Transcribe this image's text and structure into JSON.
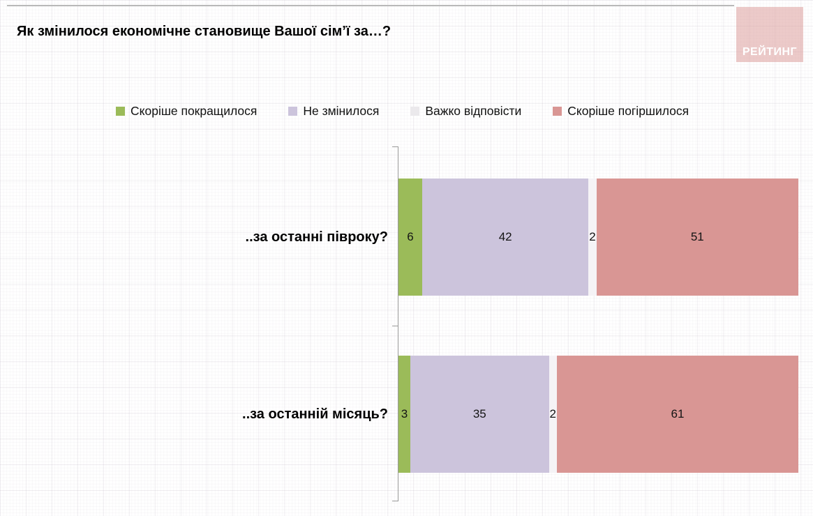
{
  "logo": {
    "text": "РЕЙТИНГ",
    "bg_color": "#e9c5c3",
    "text_color": "#ffffff"
  },
  "chart_data": {
    "type": "bar",
    "orientation": "horizontal",
    "stacked": true,
    "title": "Як змінилося економічне становище Вашої сім’ї за…?",
    "categories": [
      "..за останні півроку?",
      "..за останній місяць?"
    ],
    "series": [
      {
        "name": "Скоріше покращилося",
        "color": "#9bbb59",
        "values": [
          6,
          3
        ]
      },
      {
        "name": "Не змінилося",
        "color": "#ccc4dc",
        "values": [
          42,
          35
        ]
      },
      {
        "name": "Важко відповісти",
        "color": "#f5f3f6",
        "legend_color": "#ebe9ec",
        "values": [
          2,
          2
        ]
      },
      {
        "name": "Скоріше погіршилося",
        "color": "#d99694",
        "values": [
          51,
          61
        ]
      }
    ],
    "x_total": 101,
    "legend_position": "top",
    "value_labels": "inside",
    "grid": "graph-paper texture background",
    "axis_color": "#9a9a9a"
  }
}
